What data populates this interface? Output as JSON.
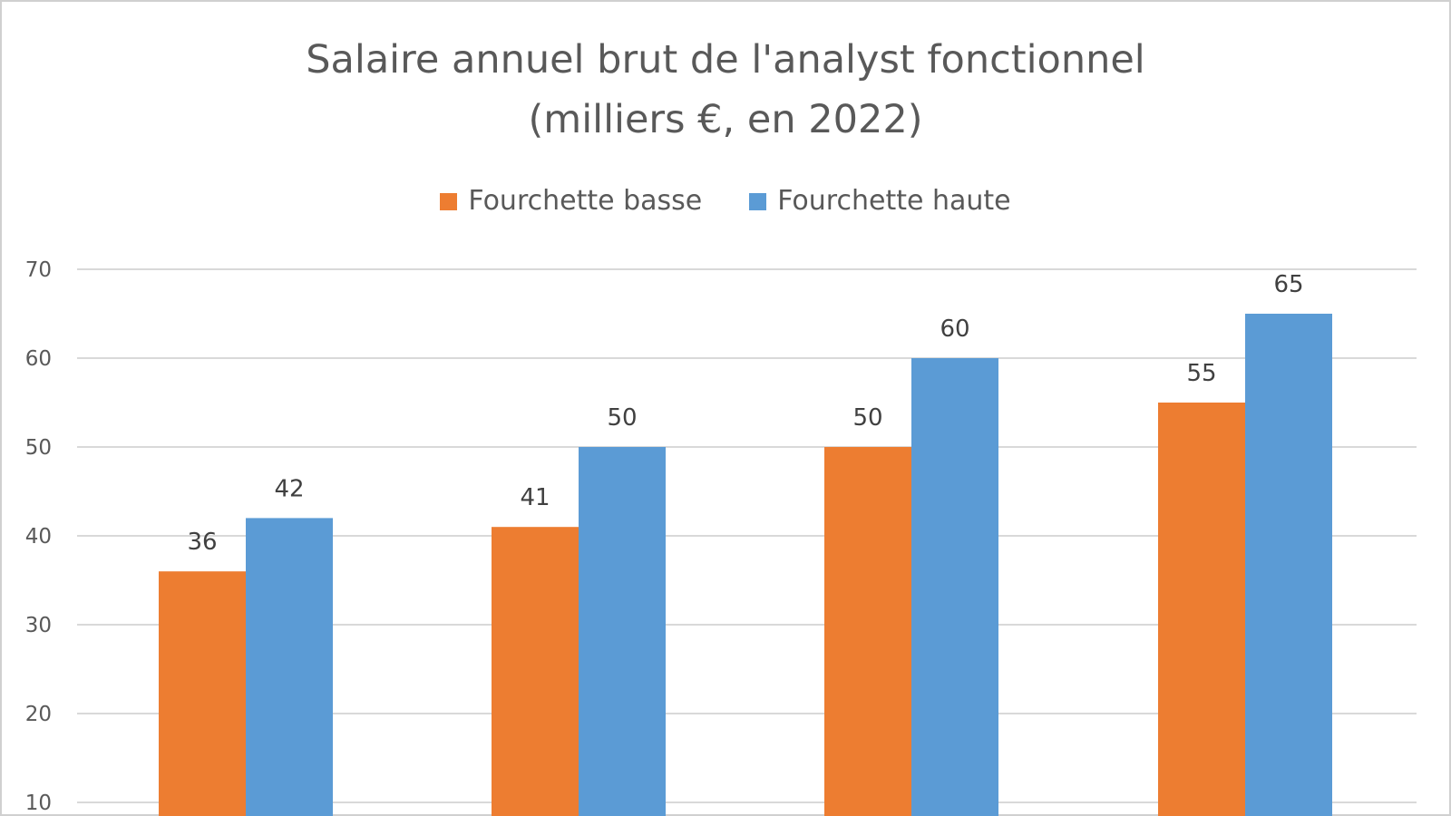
{
  "chart_data": {
    "type": "bar",
    "title": "Salaire annuel brut de l'analyst fonctionnel",
    "subtitle": "(milliers €, en 2022)",
    "xlabel": "",
    "ylabel": "",
    "categories": [
      "",
      "",
      "",
      ""
    ],
    "series": [
      {
        "name": "Fourchette basse",
        "color": "#ED7D31",
        "values": [
          36,
          41,
          50,
          55
        ]
      },
      {
        "name": "Fourchette haute",
        "color": "#5B9BD5",
        "values": [
          42,
          50,
          60,
          65
        ]
      }
    ],
    "y_ticks": [
      "10",
      "20",
      "30",
      "40",
      "50",
      "60",
      "70"
    ],
    "ylim": [
      0,
      70
    ],
    "grid": true,
    "legend_position": "top-center",
    "data_labels": true
  }
}
